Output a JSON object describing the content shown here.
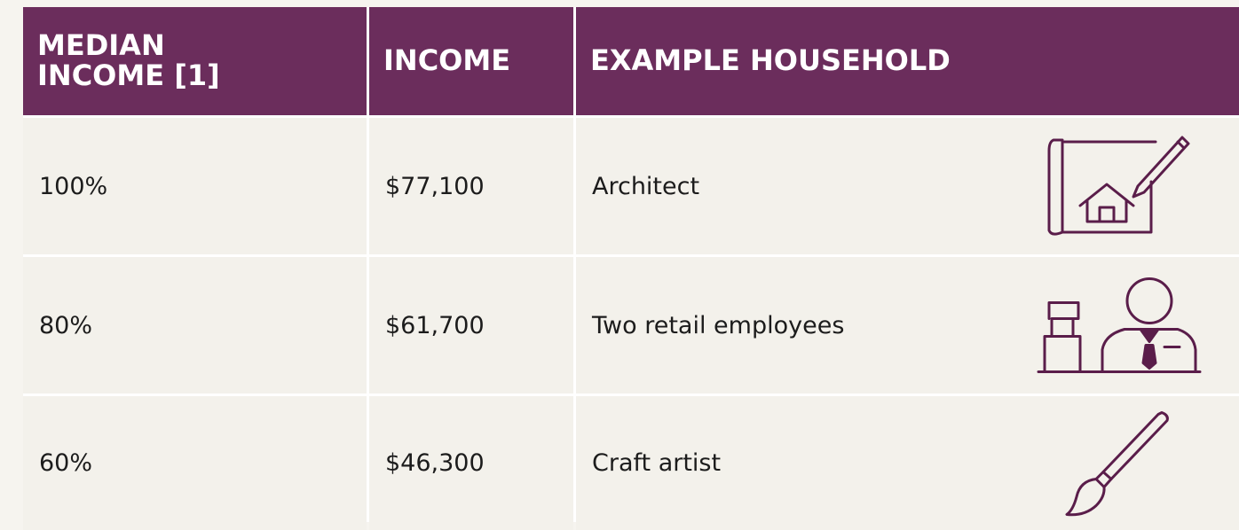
{
  "table": {
    "headers": [
      "MEDIAN INCOME [1]",
      "INCOME",
      "EXAMPLE HOUSEHOLD"
    ],
    "rows": [
      [
        "100%",
        "$77,100",
        "Architect"
      ],
      [
        "80%",
        "$61,700",
        "Two retail employees"
      ],
      [
        "60%",
        "$46,300",
        "Craft artist"
      ]
    ]
  }
}
